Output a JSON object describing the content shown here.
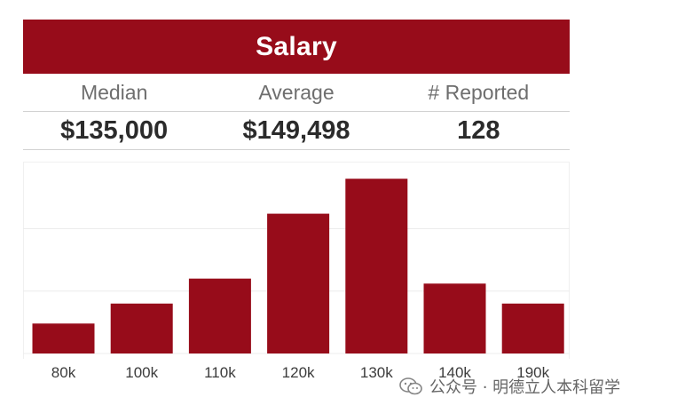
{
  "header": {
    "title": "Salary",
    "accent_color": "#970c1a"
  },
  "stats": {
    "labels": {
      "median": "Median",
      "average": "Average",
      "reported": "# Reported"
    },
    "values": {
      "median": "$135,000",
      "average": "$149,498",
      "reported": "128"
    }
  },
  "chart_data": {
    "type": "bar",
    "title": "",
    "xlabel": "",
    "ylabel": "",
    "categories": [
      "80k",
      "100k",
      "110k",
      "120k",
      "130k",
      "140k",
      "190k"
    ],
    "values": [
      6,
      10,
      15,
      28,
      35,
      14,
      10
    ],
    "ylim": [
      0,
      37
    ],
    "gridlines": [
      0,
      12.5,
      25
    ],
    "bar_color": "#970c1a",
    "grid": true,
    "legend": "none"
  },
  "watermark": {
    "text": "公众号 · 明德立人本科留学",
    "icon": "wechat-icon"
  }
}
